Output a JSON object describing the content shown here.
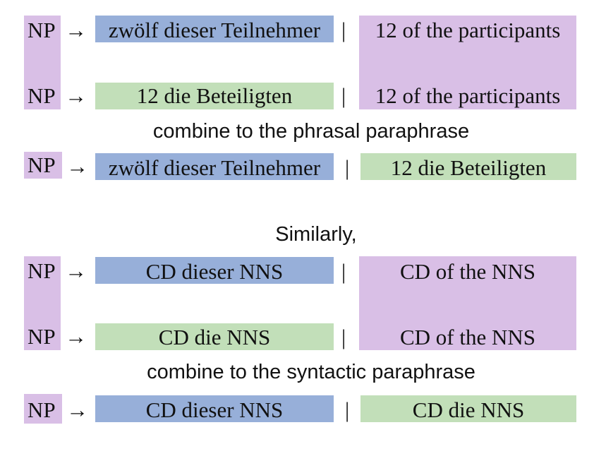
{
  "nonterminal": "NP",
  "arrow": "→",
  "separator": "|",
  "phrasal": {
    "rule1": {
      "source": "zwölf dieser Teilnehmer",
      "target": "12 of the participants"
    },
    "rule2": {
      "source": "12 die Beteiligten",
      "target": "12 of the participants"
    },
    "caption": "combine to the phrasal paraphrase",
    "result": {
      "source": "zwölf dieser Teilnehmer",
      "target": "12 die Beteiligten"
    }
  },
  "transition": "Similarly,",
  "syntactic": {
    "rule1": {
      "source": "CD dieser NNS",
      "target": "CD of the NNS"
    },
    "rule2": {
      "source": "CD die NNS",
      "target": "CD of the NNS"
    },
    "caption": "combine to the syntactic paraphrase",
    "result": {
      "source": "CD dieser NNS",
      "target": "CD die NNS"
    }
  },
  "colors": {
    "purple": "#d9bfe6",
    "blue": "#97afd9",
    "green": "#c2dfb9"
  }
}
